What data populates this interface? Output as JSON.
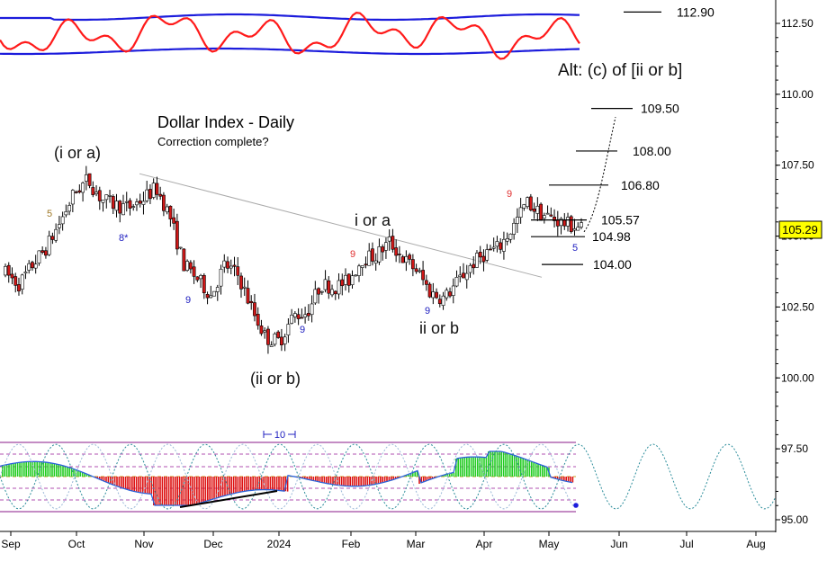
{
  "chart_data": {
    "type": "candlestick",
    "title": "Dollar Index - Daily",
    "subtitle": "Correction complete?",
    "y_axis": {
      "ticks": [
        "112.50",
        "110.00",
        "107.50",
        "105.00",
        "102.50",
        "100.00",
        "97.50",
        "95.00"
      ],
      "range": [
        94.9,
        113.5
      ],
      "current_price_label": "105.29",
      "current_price": 105.29,
      "position": "right"
    },
    "x_axis": {
      "labels": [
        "Sep",
        "Oct",
        "Nov",
        "Dec",
        "2024",
        "Feb",
        "Mar",
        "Apr",
        "May",
        "Jun",
        "Jul",
        "Aug"
      ]
    },
    "price_path": [
      {
        "t": 0,
        "v": 103.7
      },
      {
        "t": 0.5,
        "v": 103.3
      },
      {
        "t": 1,
        "v": 104.0
      },
      {
        "t": 1.5,
        "v": 104.6
      },
      {
        "t": 2,
        "v": 105.5
      },
      {
        "t": 2.5,
        "v": 106.5
      },
      {
        "t": 3,
        "v": 107.0
      },
      {
        "t": 3.5,
        "v": 106.3
      },
      {
        "t": 4,
        "v": 106.1
      },
      {
        "t": 4.5,
        "v": 106.0
      },
      {
        "t": 5,
        "v": 106.3
      },
      {
        "t": 5.5,
        "v": 106.7
      },
      {
        "t": 6,
        "v": 105.7
      },
      {
        "t": 6.5,
        "v": 104.0
      },
      {
        "t": 7,
        "v": 103.5
      },
      {
        "t": 7.5,
        "v": 102.9
      },
      {
        "t": 8,
        "v": 104.0
      },
      {
        "t": 8.5,
        "v": 103.6
      },
      {
        "t": 9,
        "v": 102.4
      },
      {
        "t": 9.5,
        "v": 101.4
      },
      {
        "t": 10,
        "v": 101.3
      },
      {
        "t": 10.5,
        "v": 102.2
      },
      {
        "t": 11,
        "v": 102.3
      },
      {
        "t": 11.5,
        "v": 103.3
      },
      {
        "t": 12,
        "v": 103.2
      },
      {
        "t": 12.5,
        "v": 103.4
      },
      {
        "t": 13,
        "v": 104.2
      },
      {
        "t": 13.5,
        "v": 104.3
      },
      {
        "t": 14,
        "v": 104.8
      },
      {
        "t": 14.5,
        "v": 104.2
      },
      {
        "t": 15,
        "v": 103.8
      },
      {
        "t": 15.5,
        "v": 103.0
      },
      {
        "t": 16,
        "v": 102.8
      },
      {
        "t": 16.5,
        "v": 103.4
      },
      {
        "t": 17,
        "v": 104.0
      },
      {
        "t": 17.5,
        "v": 104.4
      },
      {
        "t": 18,
        "v": 104.6
      },
      {
        "t": 18.5,
        "v": 105.3
      },
      {
        "t": 19,
        "v": 106.2
      },
      {
        "t": 19.5,
        "v": 105.8
      },
      {
        "t": 20,
        "v": 105.6
      },
      {
        "t": 20.5,
        "v": 105.4
      },
      {
        "t": 21,
        "v": 105.3
      }
    ],
    "levels": [
      {
        "label": "112.90",
        "value": 112.9
      },
      {
        "label": "109.50",
        "value": 109.5
      },
      {
        "label": "108.00",
        "value": 108.0
      },
      {
        "label": "106.80",
        "value": 106.8
      },
      {
        "label": "105.57",
        "value": 105.57
      },
      {
        "label": "104.98",
        "value": 104.98
      },
      {
        "label": "104.00",
        "value": 104.0
      }
    ],
    "wave_labels": [
      {
        "text": "(i or a)"
      },
      {
        "text": "(ii or b)"
      },
      {
        "text": "i or a"
      },
      {
        "text": "ii or b"
      },
      {
        "text": "Alt: (c) of [ii or b]"
      }
    ],
    "count_labels": [
      {
        "text": "5",
        "color": "#a07a2a"
      },
      {
        "text": "8*",
        "color": "#2020c0"
      },
      {
        "text": "9",
        "color": "#2020c0"
      },
      {
        "text": "9",
        "color": "#2020c0"
      },
      {
        "text": "9",
        "color": "#e03030"
      },
      {
        "text": "9",
        "color": "#2020c0"
      },
      {
        "text": "9",
        "color": "#e03030"
      },
      {
        "text": "5",
        "color": "#2020c0"
      }
    ],
    "cycle_label": "10",
    "colors": {
      "bull_candle": "#ffffff",
      "bear_candle": "#d01818",
      "osc_red": "#ff1a1a",
      "band_blue": "#1c1cdc",
      "histogram_green": "#22cc22",
      "histogram_red": "#dd1111",
      "cycle_teal": "#2a8c9a",
      "price_highlight": "#ffff00"
    },
    "grid": false,
    "legend": "none"
  }
}
